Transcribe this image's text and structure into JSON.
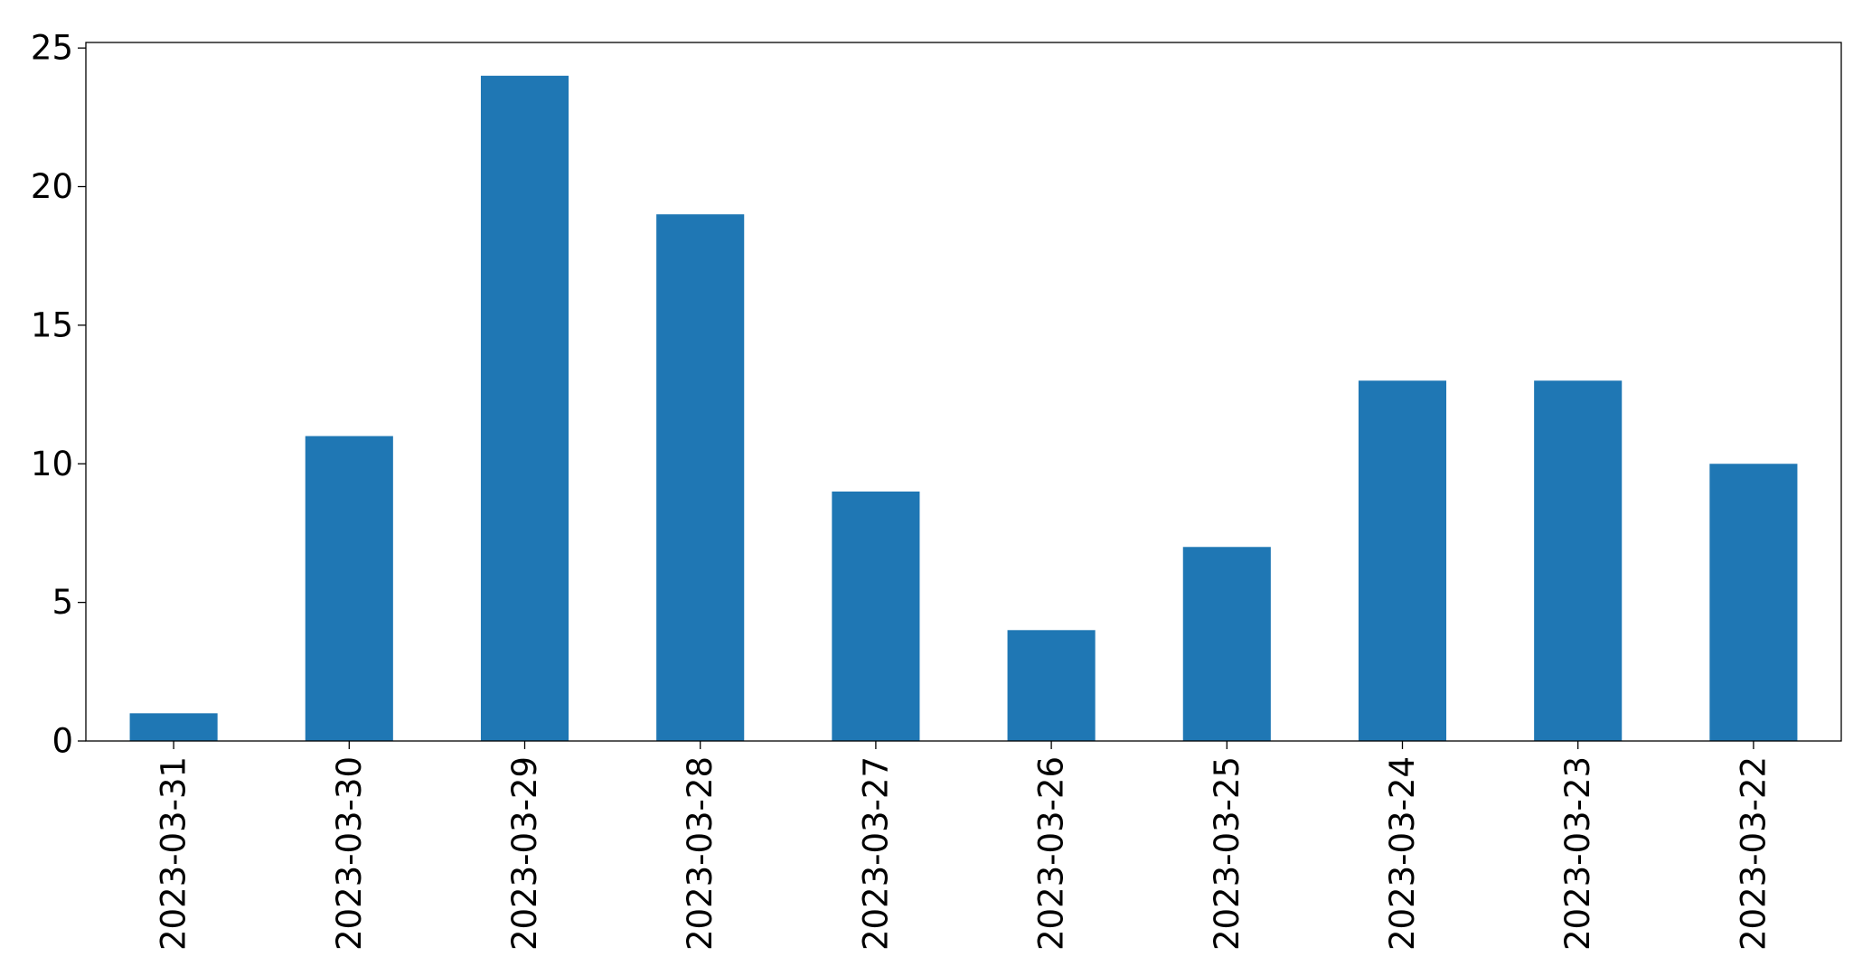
{
  "chart_data": {
    "type": "bar",
    "title": "",
    "xlabel": "",
    "ylabel": "",
    "categories": [
      "2023-03-31",
      "2023-03-30",
      "2023-03-29",
      "2023-03-28",
      "2023-03-27",
      "2023-03-26",
      "2023-03-25",
      "2023-03-24",
      "2023-03-23",
      "2023-03-22"
    ],
    "values": [
      1,
      11,
      24,
      19,
      9,
      4,
      7,
      13,
      13,
      10
    ],
    "ylim": [
      0,
      25.2
    ],
    "yticks": [
      "0",
      "5",
      "10",
      "15",
      "20",
      "25"
    ],
    "grid": false,
    "legend": "none",
    "bar_color": "#1f77b4"
  }
}
